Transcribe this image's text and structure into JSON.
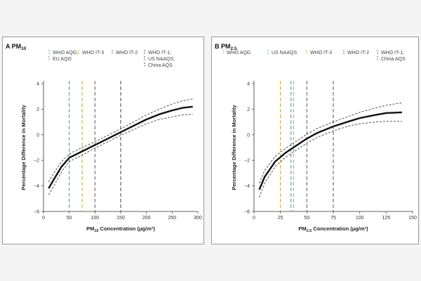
{
  "chart_data": [
    {
      "type": "line",
      "panel_letter": "A",
      "title": "PM",
      "title_sub": "10",
      "xlabel_pre": "PM",
      "xlabel_sub": "10",
      "xlabel_post": " Concentration (μg/m³)",
      "ylabel": "Percentage Difference in Mortality",
      "xlim": [
        0,
        300
      ],
      "ylim": [
        -6,
        4
      ],
      "x_ticks": [
        0,
        50,
        100,
        150,
        200,
        250,
        300
      ],
      "y_ticks": [
        -6,
        -4,
        -2,
        0,
        2,
        4
      ],
      "guidelines": [
        {
          "label": "WHO AQG;",
          "label2": "EU AQO",
          "label3": "",
          "x": 50,
          "color": "#5a9c9a"
        },
        {
          "label": "WHO IT-3",
          "label2": "",
          "label3": "",
          "x": 75,
          "color": "#b8b235"
        },
        {
          "label": "WHO IT-2",
          "label2": "",
          "label3": "",
          "x": 100,
          "color": "#6b6b6b"
        },
        {
          "label": "WHO IT-1;",
          "label2": "US NAAQS;",
          "label3": "China AQS",
          "x": 150,
          "color": "#4a4a68"
        }
      ],
      "series": [
        {
          "x": [
            10,
            20,
            35,
            50,
            75,
            100,
            125,
            150,
            175,
            200,
            225,
            250,
            270,
            290
          ],
          "y": [
            -4.2,
            -3.5,
            -2.5,
            -1.8,
            -1.3,
            -0.8,
            -0.3,
            0.2,
            0.7,
            1.2,
            1.6,
            1.9,
            2.1,
            2.2
          ]
        },
        {
          "x": [
            10,
            20,
            35,
            50,
            75,
            100,
            125,
            150,
            175,
            200,
            225,
            250,
            270,
            290
          ],
          "y": [
            -3.7,
            -3.0,
            -2.1,
            -1.5,
            -1.0,
            -0.55,
            -0.05,
            0.45,
            1.0,
            1.55,
            2.0,
            2.4,
            2.65,
            2.8
          ]
        },
        {
          "x": [
            10,
            20,
            35,
            50,
            75,
            100,
            125,
            150,
            175,
            200,
            225,
            250,
            270,
            290
          ],
          "y": [
            -4.7,
            -4.0,
            -2.9,
            -2.1,
            -1.6,
            -1.05,
            -0.55,
            -0.05,
            0.4,
            0.85,
            1.2,
            1.4,
            1.55,
            1.6
          ]
        }
      ]
    },
    {
      "type": "line",
      "panel_letter": "B",
      "title": "PM",
      "title_sub": "2.5",
      "xlabel_pre": "PM",
      "xlabel_sub": "2.5",
      "xlabel_post": " Concentration (μg/m³)",
      "ylabel": "Percentage Difference in Mortality",
      "xlim": [
        0,
        150
      ],
      "ylim": [
        -6,
        4
      ],
      "x_ticks": [
        0,
        25,
        50,
        75,
        100,
        125,
        150
      ],
      "y_ticks": [
        -6,
        -4,
        -2,
        0,
        2,
        4
      ],
      "guidelines": [
        {
          "label": "WHO AQG",
          "label2": "",
          "label3": "",
          "x": 25,
          "color": "#b8b235"
        },
        {
          "label": "US NAAQS",
          "label2": "",
          "label3": "",
          "x": 35,
          "color": "#5a9c9a"
        },
        {
          "label": "WHO IT-3",
          "label2": "",
          "label3": "",
          "x": 37.5,
          "color": "#b8b235"
        },
        {
          "label": "WHO IT-2",
          "label2": "",
          "label3": "",
          "x": 50,
          "color": "#6b6b6b"
        },
        {
          "label": "WHO IT-1;",
          "label2": "China AQS",
          "label3": "",
          "x": 75,
          "color": "#6b5a8a"
        }
      ],
      "series": [
        {
          "x": [
            5,
            10,
            20,
            30,
            40,
            50,
            60,
            75,
            90,
            100,
            115,
            125,
            140
          ],
          "y": [
            -4.3,
            -3.3,
            -2.1,
            -1.4,
            -0.85,
            -0.3,
            0.15,
            0.65,
            1.05,
            1.3,
            1.55,
            1.7,
            1.75
          ]
        },
        {
          "x": [
            5,
            10,
            20,
            30,
            40,
            50,
            60,
            75,
            90,
            100,
            115,
            125,
            140
          ],
          "y": [
            -3.8,
            -2.8,
            -1.7,
            -1.05,
            -0.5,
            0.05,
            0.5,
            1.0,
            1.45,
            1.75,
            2.1,
            2.3,
            2.5
          ]
        },
        {
          "x": [
            5,
            10,
            20,
            30,
            40,
            50,
            60,
            75,
            90,
            100,
            115,
            125,
            140
          ],
          "y": [
            -4.9,
            -3.8,
            -2.5,
            -1.75,
            -1.2,
            -0.65,
            -0.2,
            0.3,
            0.7,
            0.85,
            1.0,
            1.05,
            1.05
          ]
        }
      ]
    }
  ]
}
